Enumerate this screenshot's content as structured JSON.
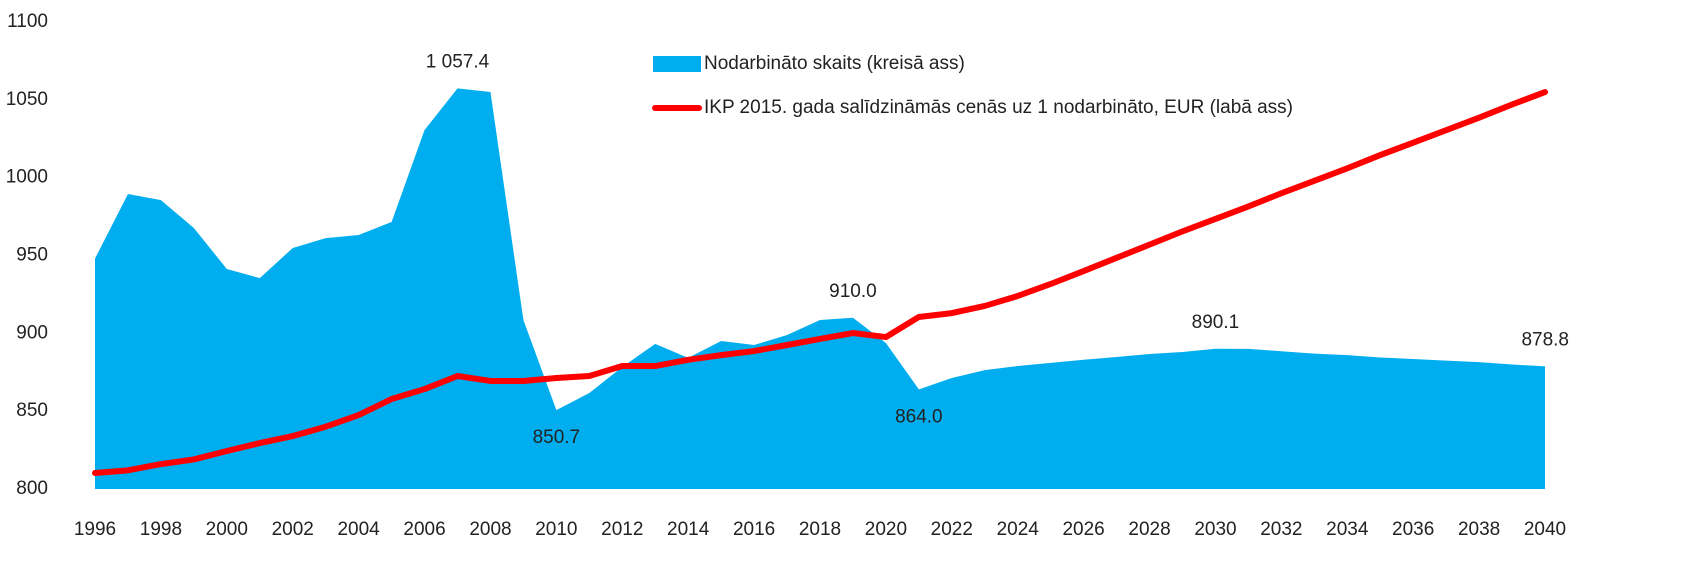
{
  "chart_data": {
    "type": "area-line",
    "x": [
      1996,
      1997,
      1998,
      1999,
      2000,
      2001,
      2002,
      2003,
      2004,
      2005,
      2006,
      2007,
      2008,
      2009,
      2010,
      2011,
      2012,
      2013,
      2014,
      2015,
      2016,
      2017,
      2018,
      2019,
      2020,
      2021,
      2022,
      2023,
      2024,
      2025,
      2026,
      2027,
      2028,
      2029,
      2030,
      2031,
      2032,
      2033,
      2034,
      2035,
      2036,
      2037,
      2038,
      2039,
      2040
    ],
    "series": [
      {
        "name": "Nodarbināto skaits (kreisā ass)",
        "color": "#00aeef",
        "kind": "area",
        "values": [
          948,
          989.5,
          985.6,
          967.7,
          941.3,
          935.5,
          954.8,
          961.2,
          963.2,
          971.5,
          1030.6,
          1057.4,
          1055,
          908.6,
          850.7,
          861.7,
          878.4,
          893.2,
          884.2,
          895.1,
          892.5,
          898.9,
          908.6,
          910.0,
          893.8,
          864.0,
          871.3,
          876.4,
          879,
          881,
          883,
          884.8,
          886.7,
          888,
          890.1,
          890,
          888.5,
          887,
          886,
          884.5,
          883.5,
          882.5,
          881.5,
          880,
          878.8
        ],
        "value_labels": [
          null,
          null,
          null,
          null,
          null,
          null,
          null,
          null,
          null,
          null,
          null,
          "1 057.4",
          null,
          null,
          "850.7",
          null,
          null,
          null,
          null,
          null,
          null,
          null,
          null,
          "910.0",
          null,
          "864.0",
          null,
          null,
          null,
          null,
          null,
          null,
          null,
          null,
          "890.1",
          null,
          null,
          null,
          null,
          null,
          null,
          null,
          null,
          null,
          "878.8"
        ]
      },
      {
        "name": "IKP 2015. gada salīdzināmās cenās uz 1 nodarbināto, EUR (labā ass)",
        "color": "#ff0000",
        "kind": "line",
        "values": [
          810.3,
          812,
          816,
          819,
          824.4,
          829.5,
          834,
          840,
          847.5,
          857.8,
          864.2,
          872.6,
          869.4,
          869.4,
          871.3,
          872.6,
          879,
          879,
          883,
          886,
          888.6,
          892.5,
          896.4,
          900.2,
          897.6,
          910.5,
          913,
          917.6,
          924,
          931.7,
          940,
          948.5,
          957,
          965.5,
          973.5,
          981.5,
          990,
          998,
          1006,
          1014.5,
          1022.5,
          1030.5,
          1038.5,
          1047,
          1055
        ]
      }
    ],
    "xlim": [
      1996,
      2040
    ],
    "xticks": [
      1996,
      1998,
      2000,
      2002,
      2004,
      2006,
      2008,
      2010,
      2012,
      2014,
      2016,
      2018,
      2020,
      2022,
      2024,
      2026,
      2028,
      2030,
      2032,
      2034,
      2036,
      2038,
      2040
    ],
    "ylim": [
      800,
      1100
    ],
    "yticks": [
      800,
      850,
      900,
      950,
      1000,
      1050,
      1100
    ],
    "grid": false
  }
}
